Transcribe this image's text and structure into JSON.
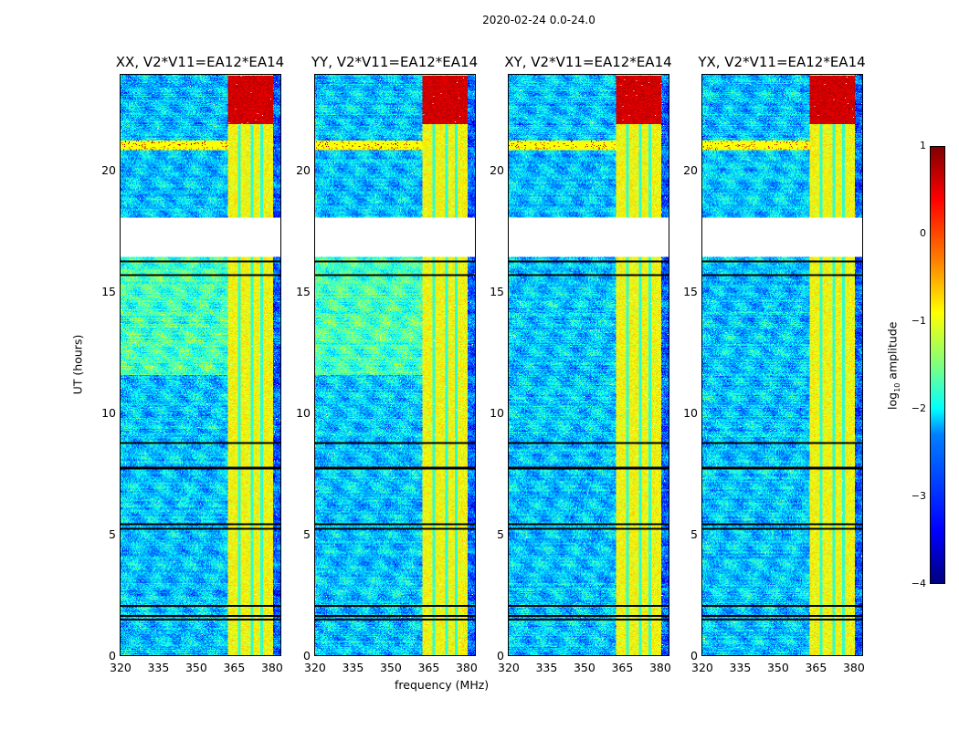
{
  "suptitle": "2020-02-24 0.0-24.0",
  "xlabel": "frequency (MHz)",
  "ylabel": "UT (hours)",
  "colorbar": {
    "label_main": "log",
    "label_sub": "10",
    "label_rest": " amplitude",
    "ticks": [
      "1",
      "0",
      "−1",
      "−2",
      "−3",
      "−4"
    ],
    "range": [
      -4,
      1
    ]
  },
  "chart_data": {
    "type": "heatmap",
    "title": "2020-02-24 0.0-24.0",
    "xlabel": "frequency (MHz)",
    "ylabel": "UT (hours)",
    "xlim": [
      320,
      384
    ],
    "ylim": [
      0,
      24
    ],
    "xticks": [
      "320",
      "335",
      "350",
      "365",
      "380"
    ],
    "yticks": [
      "0",
      "5",
      "10",
      "15",
      "20"
    ],
    "clim": [
      -4,
      1
    ],
    "colormap": "jet",
    "panels": [
      {
        "title": "XX, V2*V11=EA12*EA14"
      },
      {
        "title": "YY, V2*V11=EA12*EA14"
      },
      {
        "title": "XY, V2*V11=EA12*EA14"
      },
      {
        "title": "YX, V2*V11=EA12*EA14"
      }
    ],
    "features": {
      "no_data_hours": [
        16.5,
        18.1
      ],
      "bright_band_mhz": [
        363,
        381
      ],
      "rfi_row_hours": [
        20.9,
        21.3
      ],
      "flagged_rows_hours": [
        1.5,
        1.65,
        2.05,
        5.25,
        5.45,
        7.75,
        8.8,
        15.75,
        16.3
      ]
    }
  }
}
